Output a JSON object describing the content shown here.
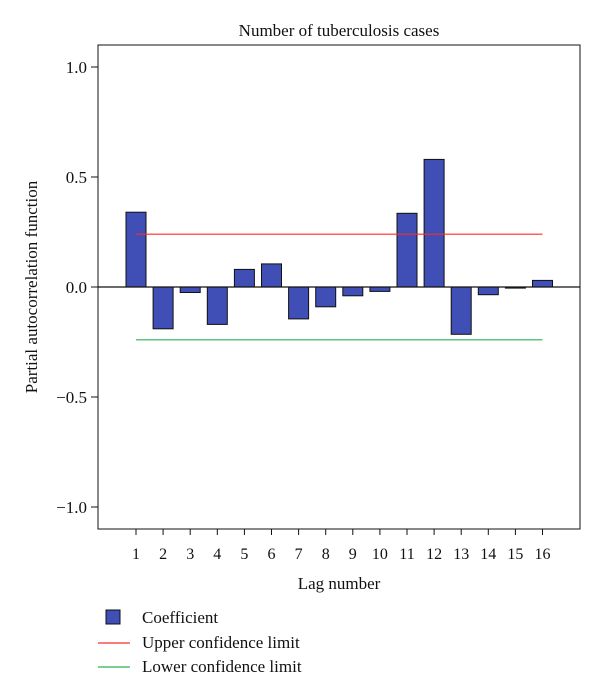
{
  "chart_data": {
    "type": "bar",
    "title": "Number of tuberculosis cases",
    "xlabel": "Lag number",
    "ylabel": "Partial autocorrelation function",
    "categories": [
      "1",
      "2",
      "3",
      "4",
      "5",
      "6",
      "7",
      "8",
      "9",
      "10",
      "11",
      "12",
      "13",
      "14",
      "15",
      "16"
    ],
    "series": [
      {
        "name": "Coefficient",
        "values": [
          0.34,
          -0.19,
          -0.025,
          -0.17,
          0.08,
          0.105,
          -0.145,
          -0.09,
          -0.04,
          -0.02,
          0.335,
          0.58,
          -0.215,
          -0.035,
          -0.005,
          0.03
        ]
      }
    ],
    "upper_confidence_limit": 0.24,
    "lower_confidence_limit": -0.24,
    "ylim": [
      -1.1,
      1.1
    ],
    "yticks": [
      1.0,
      0.5,
      0.0,
      -0.5,
      -1.0
    ],
    "ytick_labels": [
      "1.0",
      "0.5",
      "0.0",
      "−0.5",
      "−1.0"
    ],
    "grid": false,
    "legend_position": "bottom-left",
    "legend": [
      {
        "label": "Coefficient",
        "kind": "box"
      },
      {
        "label": "Upper confidence limit",
        "kind": "line"
      },
      {
        "label": "Lower confidence limit",
        "kind": "line"
      }
    ],
    "colors": {
      "bar_fill": "#3f4fb5",
      "bar_stroke": "#111111",
      "upper_line": "#ff2a2a",
      "lower_line": "#2ab34a",
      "zero_line": "#111111"
    }
  }
}
